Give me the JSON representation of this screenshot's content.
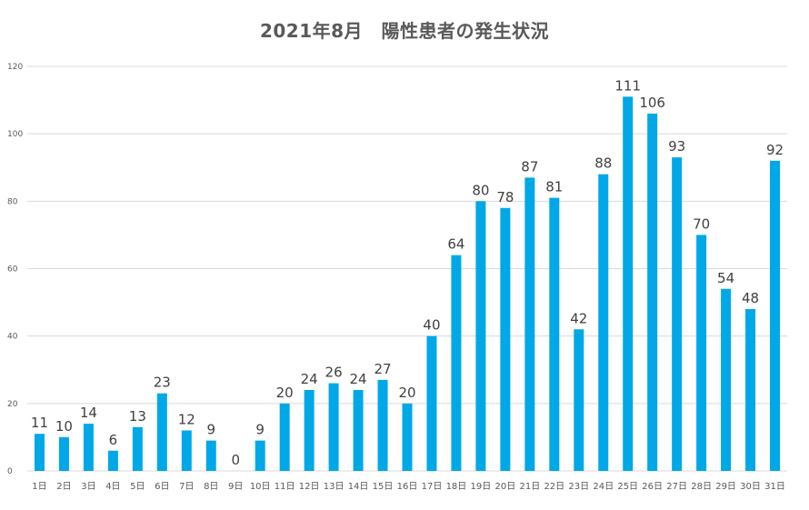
{
  "chart_data": {
    "type": "bar",
    "title": "2021年8月　陽性患者の発生状況",
    "xlabel": "",
    "ylabel": "",
    "ylim": [
      0,
      120
    ],
    "yticks": [
      0,
      20,
      40,
      60,
      80,
      100,
      120
    ],
    "grid": true,
    "legend": "none",
    "bar_color": "#00a8e8",
    "categories": [
      "1日",
      "2日",
      "3日",
      "4日",
      "5日",
      "6日",
      "7日",
      "8日",
      "9日",
      "10日",
      "11日",
      "12日",
      "13日",
      "14日",
      "15日",
      "16日",
      "17日",
      "18日",
      "19日",
      "20日",
      "21日",
      "22日",
      "23日",
      "24日",
      "25日",
      "26日",
      "27日",
      "28日",
      "29日",
      "30日",
      "31日"
    ],
    "values": [
      11,
      10,
      14,
      6,
      13,
      23,
      12,
      9,
      0,
      9,
      20,
      24,
      26,
      24,
      27,
      20,
      40,
      64,
      80,
      78,
      87,
      81,
      42,
      88,
      111,
      106,
      93,
      70,
      54,
      48,
      92
    ]
  }
}
